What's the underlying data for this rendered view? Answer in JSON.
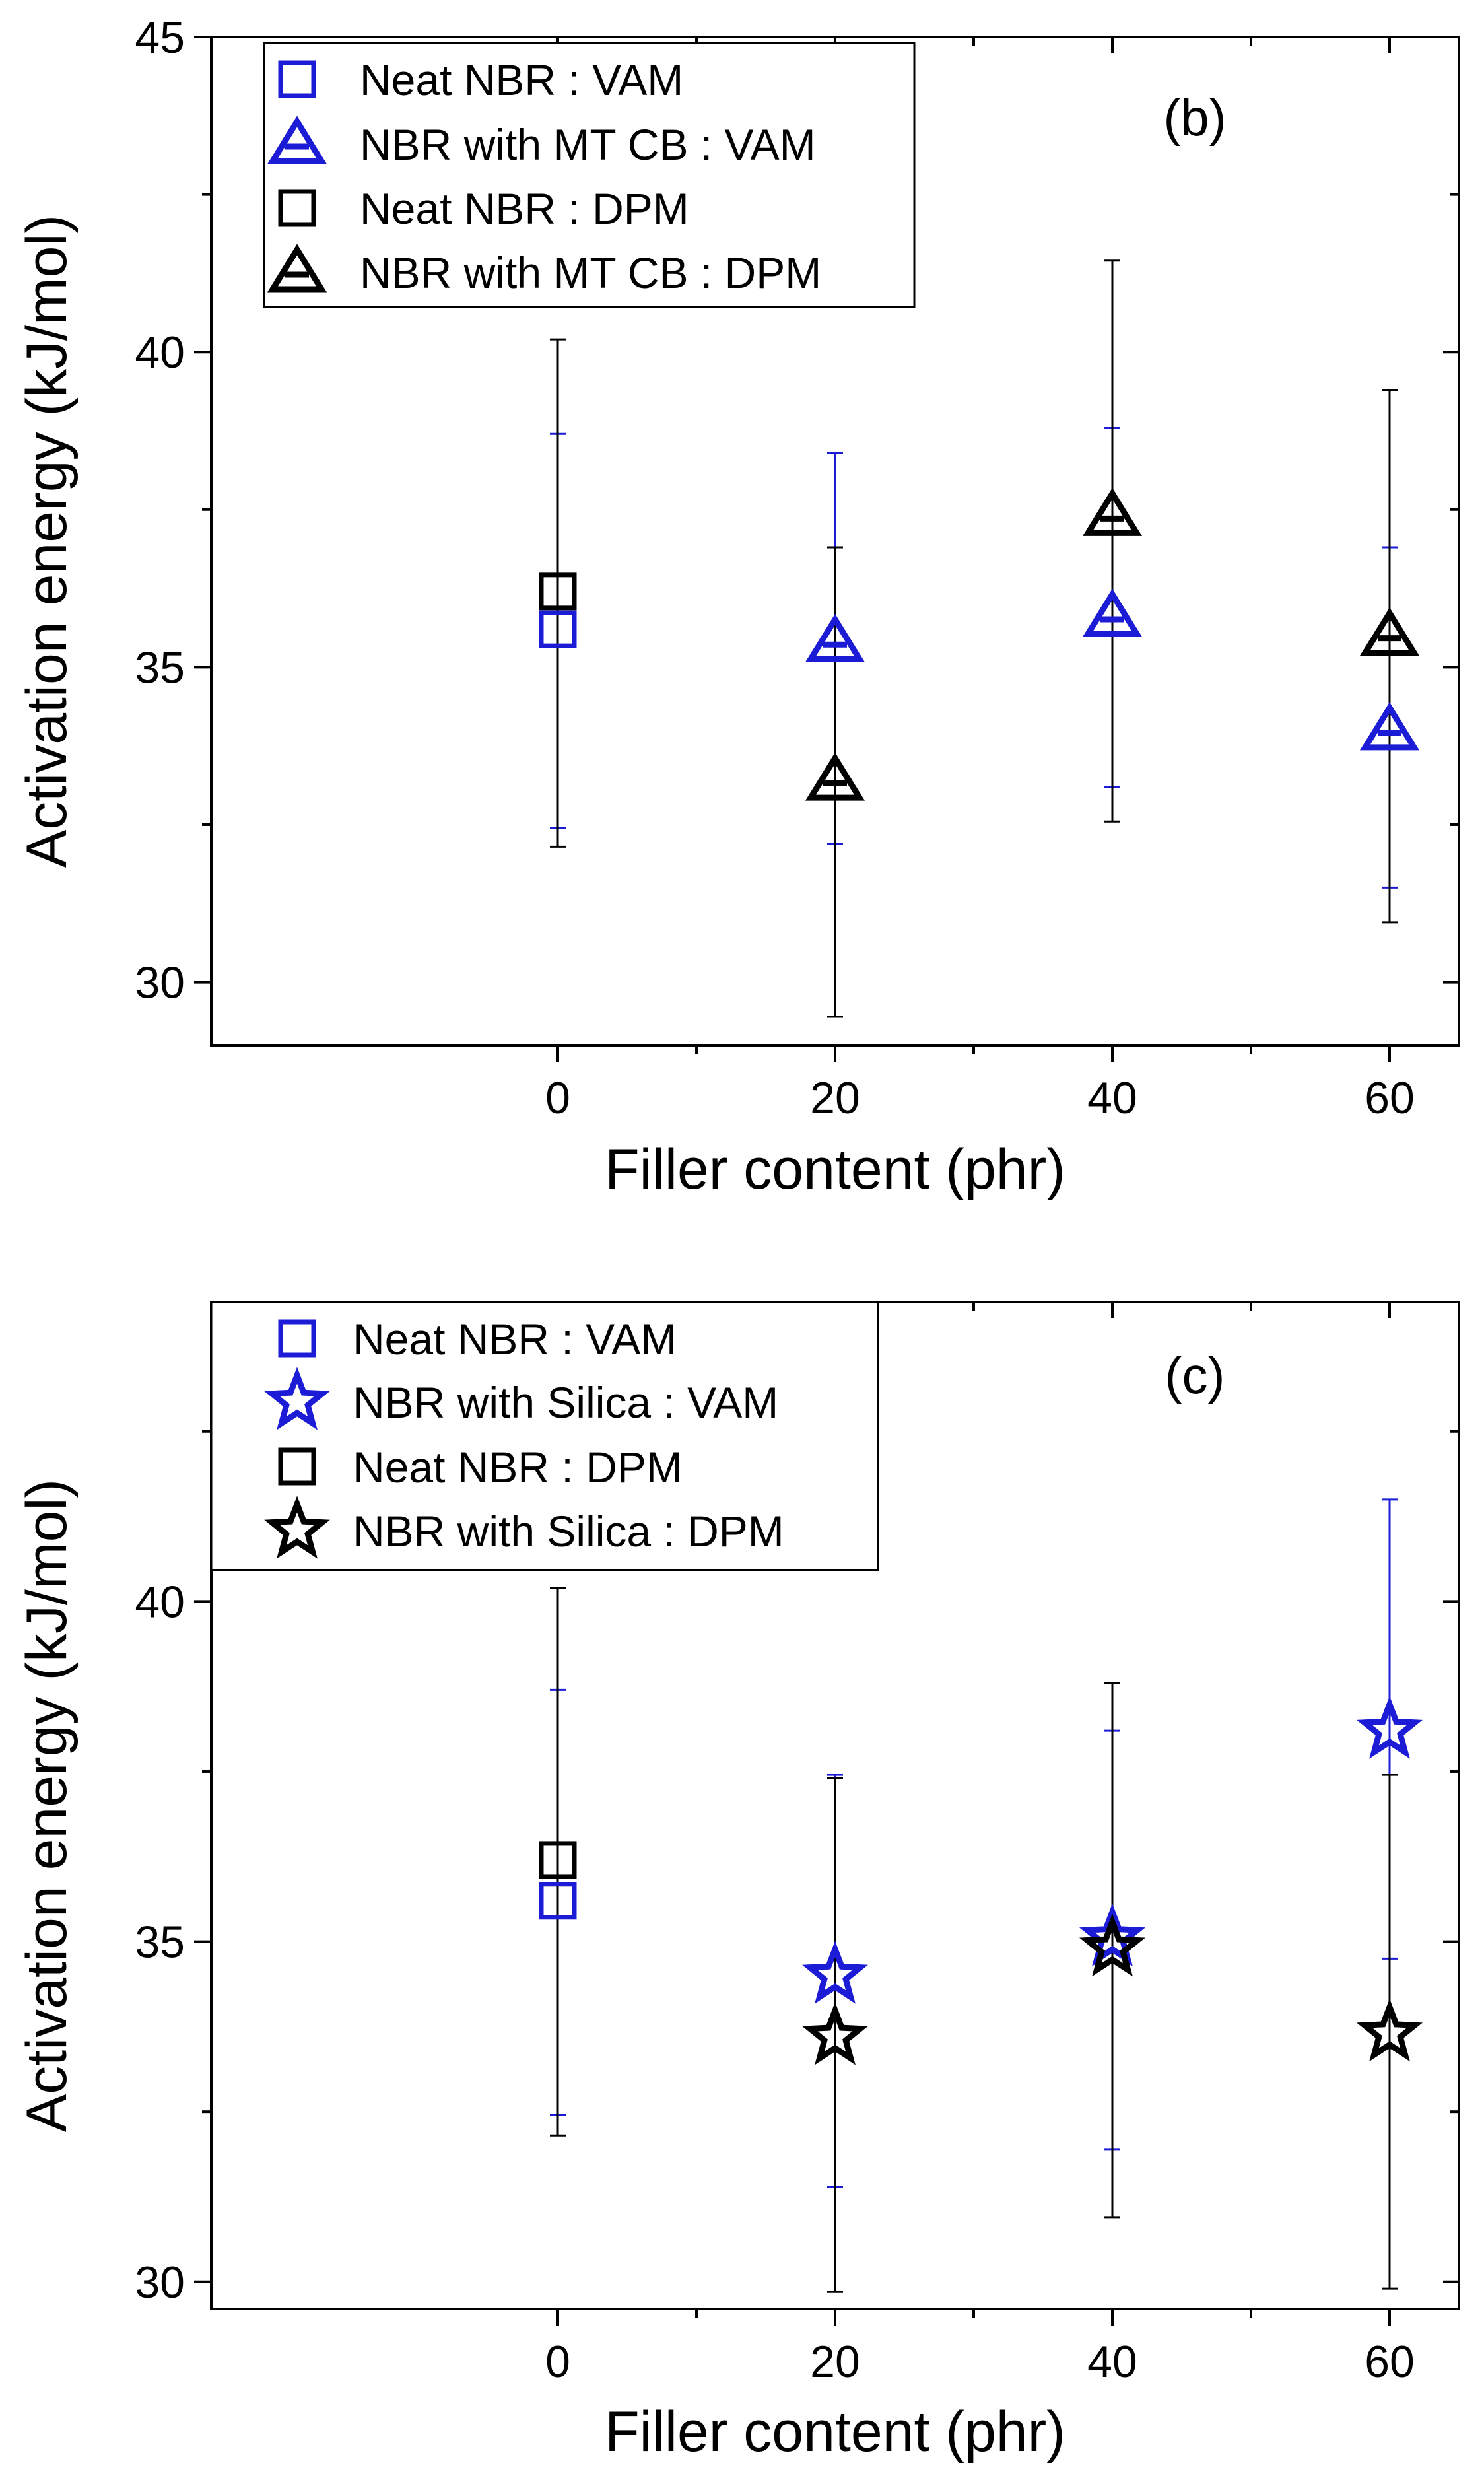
{
  "figure": {
    "background": "#ffffff",
    "colors": {
      "blue": "#1c1cd6",
      "black": "#000000"
    }
  },
  "chart_data": [
    {
      "panel_label": "(b)",
      "type": "scatter",
      "xlabel": "Filler content (phr)",
      "ylabel": "Activation energy (kJ/mol)",
      "xlim": [
        -25,
        65
      ],
      "ylim": [
        29,
        45
      ],
      "x_ticks": [
        0,
        20,
        40,
        60
      ],
      "x_minor_ticks": [
        10,
        30,
        50
      ],
      "y_ticks": [
        30,
        35,
        40,
        45
      ],
      "y_minor_ticks": [
        32.5,
        37.5,
        42.5
      ],
      "legend_position": "top-left",
      "series": [
        {
          "name": "Neat NBR : VAM",
          "marker": "square",
          "color": "#1c1cd6",
          "points": [
            {
              "x": 0,
              "y": 35.6,
              "err_low": 32.45,
              "err_high": 38.7
            }
          ]
        },
        {
          "name": "NBR with MT CB : VAM",
          "marker": "triangle",
          "color": "#1c1cd6",
          "points": [
            {
              "x": 20,
              "y": 35.4,
              "err_low": 32.2,
              "err_high": 38.4
            },
            {
              "x": 40,
              "y": 35.8,
              "err_low": 33.1,
              "err_high": 38.8
            },
            {
              "x": 60,
              "y": 34.0,
              "err_low": 31.5,
              "err_high": 36.9
            }
          ]
        },
        {
          "name": "Neat NBR : DPM",
          "marker": "square",
          "color": "#000000",
          "points": [
            {
              "x": 0,
              "y": 36.2,
              "err_low": 32.15,
              "err_high": 40.2
            }
          ]
        },
        {
          "name": "NBR with MT CB : DPM",
          "marker": "triangle",
          "color": "#000000",
          "points": [
            {
              "x": 20,
              "y": 33.2,
              "err_low": 29.45,
              "err_high": 36.9
            },
            {
              "x": 40,
              "y": 37.4,
              "err_low": 32.55,
              "err_high": 41.45
            },
            {
              "x": 60,
              "y": 35.5,
              "err_low": 30.95,
              "err_high": 39.4
            }
          ]
        }
      ]
    },
    {
      "panel_label": "(c)",
      "type": "scatter",
      "xlabel": "Filler content (phr)",
      "ylabel": "Activation energy (kJ/mol)",
      "xlim": [
        -25,
        65
      ],
      "ylim": [
        29.6,
        44.4
      ],
      "x_ticks": [
        0,
        20,
        40,
        60
      ],
      "x_minor_ticks": [
        10,
        30,
        50
      ],
      "y_ticks": [
        30,
        35,
        40
      ],
      "y_minor_ticks": [
        32.5,
        37.5,
        42.5
      ],
      "legend_position": "top-left",
      "series": [
        {
          "name": "Neat NBR : VAM",
          "marker": "square",
          "color": "#1c1cd6",
          "points": [
            {
              "x": 0,
              "y": 35.6,
              "err_low": 32.45,
              "err_high": 38.7
            }
          ]
        },
        {
          "name": "NBR with Silica : VAM",
          "marker": "star",
          "color": "#1c1cd6",
          "points": [
            {
              "x": 20,
              "y": 34.5,
              "err_low": 31.4,
              "err_high": 37.45
            },
            {
              "x": 40,
              "y": 35.05,
              "err_low": 31.95,
              "err_high": 38.1
            },
            {
              "x": 60,
              "y": 38.1,
              "err_low": 34.75,
              "err_high": 41.5
            }
          ]
        },
        {
          "name": "Neat NBR : DPM",
          "marker": "square",
          "color": "#000000",
          "points": [
            {
              "x": 0,
              "y": 36.2,
              "err_low": 32.15,
              "err_high": 40.2
            }
          ]
        },
        {
          "name": "NBR with Silica : DPM",
          "marker": "star",
          "color": "#000000",
          "points": [
            {
              "x": 20,
              "y": 33.6,
              "err_low": 29.85,
              "err_high": 37.4
            },
            {
              "x": 40,
              "y": 34.9,
              "err_low": 30.95,
              "err_high": 38.8
            },
            {
              "x": 60,
              "y": 33.65,
              "err_low": 29.9,
              "err_high": 37.45
            }
          ]
        }
      ]
    }
  ]
}
